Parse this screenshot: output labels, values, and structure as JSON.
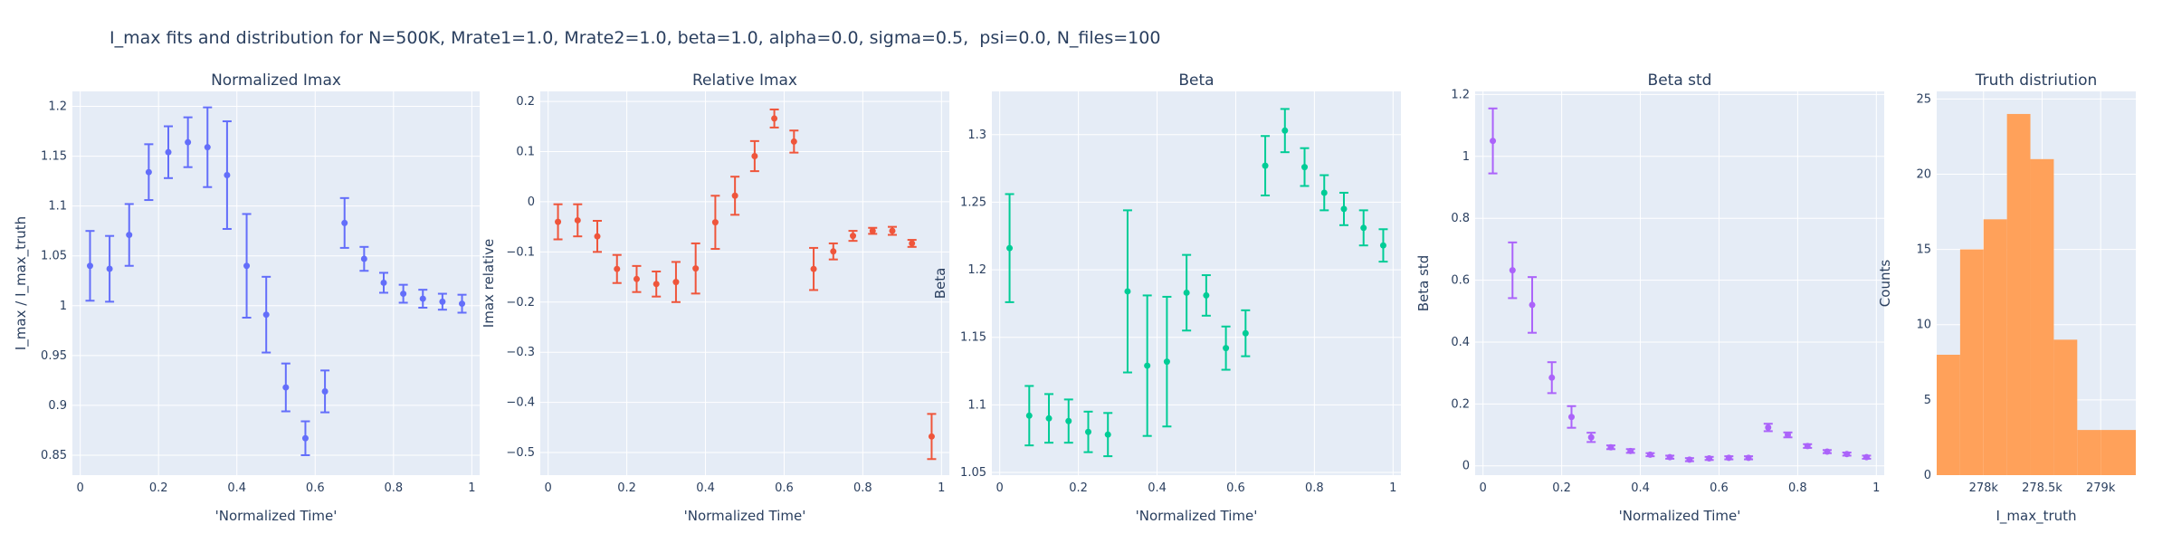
{
  "figure": {
    "title": "I_max fits and distribution for N=500K, Mrate1=1.0, Mrate2=1.0, beta=1.0, alpha=0.0, sigma=0.5,  psi=0.0, N_files=100"
  },
  "colors": {
    "panel_bg": "#e5ecf6",
    "grid": "#ffffff",
    "text": "#2a3f5f",
    "series": [
      "#636efa",
      "#ef553b",
      "#00cc96",
      "#ab63fa",
      "#ffa15a"
    ]
  },
  "chart_data": [
    {
      "type": "scatter",
      "title": "Normalized Imax",
      "xlabel": "'Normalized Time'",
      "ylabel": "I_max / I_max_truth",
      "xlim": [
        -0.02,
        1.02
      ],
      "ylim": [
        0.83,
        1.215
      ],
      "xticks": [
        0,
        0.2,
        0.4,
        0.6,
        0.8,
        1
      ],
      "xtick_labels": [
        "0",
        "0.2",
        "0.4",
        "0.6",
        "0.8",
        "1"
      ],
      "yticks": [
        0.85,
        0.9,
        0.95,
        1,
        1.05,
        1.1,
        1.15,
        1.2
      ],
      "ytick_labels": [
        "0.85",
        "0.9",
        "0.95",
        "1",
        "1.05",
        "1.1",
        "1.15",
        "1.2"
      ],
      "grid": true,
      "color": "#636efa",
      "series": [
        {
          "x": [
            0.025,
            0.075,
            0.125,
            0.175,
            0.225,
            0.275,
            0.325,
            0.375,
            0.425,
            0.475,
            0.525,
            0.575,
            0.625,
            0.675,
            0.725,
            0.775,
            0.825,
            0.875,
            0.925,
            0.975
          ],
          "y": [
            1.04,
            1.037,
            1.071,
            1.134,
            1.154,
            1.164,
            1.159,
            1.131,
            1.04,
            0.991,
            0.918,
            0.867,
            0.914,
            1.083,
            1.047,
            1.023,
            1.012,
            1.007,
            1.004,
            1.002
          ],
          "err": [
            0.035,
            0.033,
            0.031,
            0.028,
            0.026,
            0.025,
            0.04,
            0.054,
            0.052,
            0.038,
            0.024,
            0.017,
            0.021,
            0.025,
            0.012,
            0.01,
            0.009,
            0.009,
            0.008,
            0.009
          ]
        }
      ]
    },
    {
      "type": "scatter",
      "title": "Relative Imax",
      "xlabel": "'Normalized Time'",
      "ylabel": "Imax relative",
      "xlim": [
        -0.02,
        1.02
      ],
      "ylim": [
        -0.545,
        0.22
      ],
      "xticks": [
        0,
        0.2,
        0.4,
        0.6,
        0.8,
        1
      ],
      "xtick_labels": [
        "0",
        "0.2",
        "0.4",
        "0.6",
        "0.8",
        "1"
      ],
      "yticks": [
        -0.5,
        -0.4,
        -0.3,
        -0.2,
        -0.1,
        0,
        0.1,
        0.2
      ],
      "ytick_labels": [
        "−0.5",
        "−0.4",
        "−0.3",
        "−0.2",
        "−0.1",
        "0",
        "0.1",
        "0.2"
      ],
      "grid": true,
      "color": "#ef553b",
      "series": [
        {
          "x": [
            0.025,
            0.075,
            0.125,
            0.175,
            0.225,
            0.275,
            0.325,
            0.375,
            0.425,
            0.475,
            0.525,
            0.575,
            0.625,
            0.675,
            0.725,
            0.775,
            0.825,
            0.875,
            0.925,
            0.975
          ],
          "y": [
            -0.04,
            -0.037,
            -0.069,
            -0.134,
            -0.154,
            -0.164,
            -0.16,
            -0.133,
            -0.041,
            0.012,
            0.091,
            0.166,
            0.12,
            -0.134,
            -0.099,
            -0.068,
            -0.058,
            -0.058,
            -0.083,
            -0.468
          ],
          "err": [
            0.035,
            0.032,
            0.031,
            0.028,
            0.026,
            0.025,
            0.04,
            0.05,
            0.053,
            0.038,
            0.03,
            0.018,
            0.022,
            0.042,
            0.016,
            0.01,
            0.006,
            0.008,
            0.007,
            0.045
          ]
        }
      ]
    },
    {
      "type": "scatter",
      "title": "Beta",
      "xlabel": "'Normalized Time'",
      "ylabel": "Beta",
      "xlim": [
        -0.02,
        1.02
      ],
      "ylim": [
        1.048,
        1.332
      ],
      "xticks": [
        0,
        0.2,
        0.4,
        0.6,
        0.8,
        1
      ],
      "xtick_labels": [
        "0",
        "0.2",
        "0.4",
        "0.6",
        "0.8",
        "1"
      ],
      "yticks": [
        1.05,
        1.1,
        1.15,
        1.2,
        1.25,
        1.3
      ],
      "ytick_labels": [
        "1.05",
        "1.1",
        "1.15",
        "1.2",
        "1.25",
        "1.3"
      ],
      "grid": true,
      "color": "#00cc96",
      "series": [
        {
          "x": [
            0.025,
            0.075,
            0.125,
            0.175,
            0.225,
            0.275,
            0.325,
            0.375,
            0.425,
            0.475,
            0.525,
            0.575,
            0.625,
            0.675,
            0.725,
            0.775,
            0.825,
            0.875,
            0.925,
            0.975
          ],
          "y": [
            1.216,
            1.092,
            1.09,
            1.088,
            1.08,
            1.078,
            1.184,
            1.129,
            1.132,
            1.183,
            1.181,
            1.142,
            1.153,
            1.277,
            1.303,
            1.276,
            1.257,
            1.245,
            1.231,
            1.218
          ],
          "err": [
            0.04,
            0.022,
            0.018,
            0.016,
            0.015,
            0.016,
            0.06,
            0.052,
            0.048,
            0.028,
            0.015,
            0.016,
            0.017,
            0.022,
            0.016,
            0.014,
            0.013,
            0.012,
            0.013,
            0.012
          ]
        }
      ]
    },
    {
      "type": "scatter",
      "title": "Beta std",
      "xlabel": "'Normalized Time'",
      "ylabel": "Beta std",
      "xlim": [
        -0.02,
        1.02
      ],
      "ylim": [
        -0.03,
        1.21
      ],
      "xticks": [
        0,
        0.2,
        0.4,
        0.6,
        0.8,
        1
      ],
      "xtick_labels": [
        "0",
        "0.2",
        "0.4",
        "0.6",
        "0.8",
        "1"
      ],
      "yticks": [
        0,
        0.2,
        0.4,
        0.6,
        0.8,
        1,
        1.2
      ],
      "ytick_labels": [
        "0",
        "0.2",
        "0.4",
        "0.6",
        "0.8",
        "1",
        "1.2"
      ],
      "grid": true,
      "color": "#ab63fa",
      "series": [
        {
          "x": [
            0.025,
            0.075,
            0.125,
            0.175,
            0.225,
            0.275,
            0.325,
            0.375,
            0.425,
            0.475,
            0.525,
            0.575,
            0.625,
            0.675,
            0.725,
            0.775,
            0.825,
            0.875,
            0.925,
            0.975
          ],
          "y": [
            1.05,
            0.632,
            0.52,
            0.285,
            0.158,
            0.092,
            0.06,
            0.048,
            0.036,
            0.028,
            0.02,
            0.024,
            0.026,
            0.026,
            0.124,
            0.1,
            0.064,
            0.046,
            0.038,
            0.028
          ],
          "err": [
            0.105,
            0.09,
            0.09,
            0.05,
            0.035,
            0.015,
            0.006,
            0.006,
            0.005,
            0.005,
            0.005,
            0.005,
            0.005,
            0.005,
            0.012,
            0.008,
            0.006,
            0.005,
            0.005,
            0.005
          ]
        }
      ]
    },
    {
      "type": "bar",
      "title": "Truth distriution",
      "xlabel": "I_max_truth",
      "ylabel": "Counts",
      "xlim": [
        277600,
        279300
      ],
      "ylim": [
        0,
        25.5
      ],
      "xticks": [
        278000,
        278500,
        279000
      ],
      "xtick_labels": [
        "278k",
        "278.5k",
        "279k"
      ],
      "yticks": [
        0,
        5,
        10,
        15,
        20,
        25
      ],
      "ytick_labels": [
        "0",
        "5",
        "10",
        "15",
        "20",
        "25"
      ],
      "grid": true,
      "color": "#ffa15a",
      "bin_edges": [
        277600,
        277800,
        278000,
        278200,
        278400,
        278600,
        278800,
        279000,
        279300
      ],
      "counts": [
        8,
        15,
        17,
        24,
        21,
        9,
        3,
        3
      ]
    }
  ]
}
